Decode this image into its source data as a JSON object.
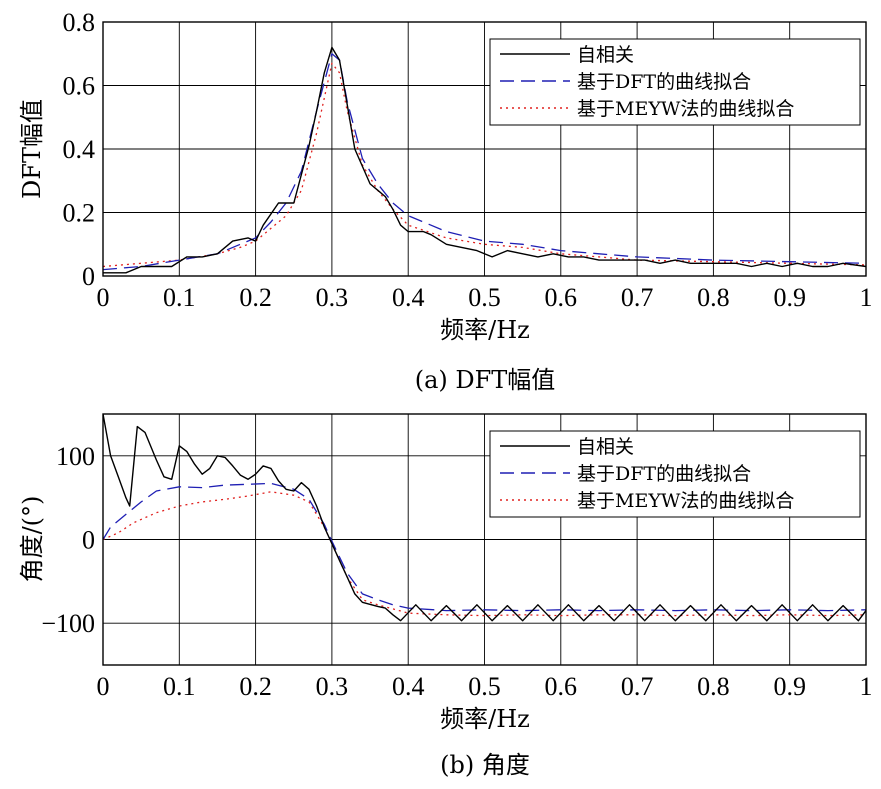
{
  "chart_data": [
    {
      "id": "a",
      "type": "line",
      "caption": "(a) DFT幅值",
      "xlabel": "频率/Hz",
      "ylabel": "DFT幅值",
      "xlim": [
        0,
        1
      ],
      "ylim": [
        0,
        0.8
      ],
      "xticks": [
        0,
        0.1,
        0.2,
        0.3,
        0.4,
        0.5,
        0.6,
        0.7,
        0.8,
        0.9,
        1
      ],
      "xtick_labels": [
        "0",
        "0.1",
        "0.2",
        "0.3",
        "0.4",
        "0.5",
        "0.6",
        "0.7",
        "0.8",
        "0.9",
        "1"
      ],
      "yticks": [
        0,
        0.2,
        0.4,
        0.6,
        0.8
      ],
      "ytick_labels": [
        "0",
        "0.2",
        "0.4",
        "0.6",
        "0.8"
      ],
      "grid": true,
      "legend_position": "top-right",
      "series": [
        {
          "name": "自相关",
          "style": "solid",
          "color": "#000000",
          "points": [
            [
              0,
              0.01
            ],
            [
              0.03,
              0.01
            ],
            [
              0.05,
              0.03
            ],
            [
              0.07,
              0.03
            ],
            [
              0.09,
              0.03
            ],
            [
              0.11,
              0.06
            ],
            [
              0.13,
              0.06
            ],
            [
              0.15,
              0.07
            ],
            [
              0.17,
              0.11
            ],
            [
              0.19,
              0.12
            ],
            [
              0.2,
              0.11
            ],
            [
              0.21,
              0.16
            ],
            [
              0.23,
              0.23
            ],
            [
              0.25,
              0.23
            ],
            [
              0.26,
              0.32
            ],
            [
              0.27,
              0.41
            ],
            [
              0.28,
              0.52
            ],
            [
              0.29,
              0.64
            ],
            [
              0.3,
              0.72
            ],
            [
              0.31,
              0.68
            ],
            [
              0.32,
              0.54
            ],
            [
              0.33,
              0.4
            ],
            [
              0.35,
              0.29
            ],
            [
              0.37,
              0.25
            ],
            [
              0.38,
              0.21
            ],
            [
              0.39,
              0.16
            ],
            [
              0.4,
              0.14
            ],
            [
              0.42,
              0.14
            ],
            [
              0.43,
              0.13
            ],
            [
              0.45,
              0.1
            ],
            [
              0.47,
              0.09
            ],
            [
              0.49,
              0.08
            ],
            [
              0.51,
              0.06
            ],
            [
              0.53,
              0.08
            ],
            [
              0.55,
              0.07
            ],
            [
              0.57,
              0.06
            ],
            [
              0.59,
              0.07
            ],
            [
              0.61,
              0.06
            ],
            [
              0.63,
              0.06
            ],
            [
              0.65,
              0.05
            ],
            [
              0.67,
              0.05
            ],
            [
              0.69,
              0.05
            ],
            [
              0.71,
              0.05
            ],
            [
              0.73,
              0.04
            ],
            [
              0.75,
              0.05
            ],
            [
              0.77,
              0.04
            ],
            [
              0.79,
              0.04
            ],
            [
              0.81,
              0.04
            ],
            [
              0.83,
              0.04
            ],
            [
              0.85,
              0.03
            ],
            [
              0.87,
              0.04
            ],
            [
              0.89,
              0.03
            ],
            [
              0.91,
              0.04
            ],
            [
              0.93,
              0.03
            ],
            [
              0.95,
              0.03
            ],
            [
              0.97,
              0.04
            ],
            [
              1.0,
              0.03
            ]
          ]
        },
        {
          "name": "基于DFT的曲线拟合",
          "style": "dashed",
          "color": "#1f1fb4",
          "points": [
            [
              0,
              0.02
            ],
            [
              0.05,
              0.03
            ],
            [
              0.1,
              0.05
            ],
            [
              0.15,
              0.07
            ],
            [
              0.18,
              0.1
            ],
            [
              0.2,
              0.12
            ],
            [
              0.22,
              0.17
            ],
            [
              0.24,
              0.23
            ],
            [
              0.26,
              0.33
            ],
            [
              0.28,
              0.52
            ],
            [
              0.3,
              0.7
            ],
            [
              0.31,
              0.68
            ],
            [
              0.32,
              0.55
            ],
            [
              0.34,
              0.37
            ],
            [
              0.36,
              0.29
            ],
            [
              0.38,
              0.23
            ],
            [
              0.4,
              0.19
            ],
            [
              0.45,
              0.14
            ],
            [
              0.5,
              0.11
            ],
            [
              0.55,
              0.1
            ],
            [
              0.6,
              0.08
            ],
            [
              0.65,
              0.07
            ],
            [
              0.7,
              0.06
            ],
            [
              0.8,
              0.05
            ],
            [
              0.9,
              0.045
            ],
            [
              1.0,
              0.04
            ]
          ]
        },
        {
          "name": "基于MEYW法的曲线拟合",
          "style": "dotted",
          "color": "#e0201e",
          "points": [
            [
              0,
              0.03
            ],
            [
              0.05,
              0.04
            ],
            [
              0.1,
              0.05
            ],
            [
              0.15,
              0.07
            ],
            [
              0.18,
              0.09
            ],
            [
              0.2,
              0.11
            ],
            [
              0.22,
              0.15
            ],
            [
              0.24,
              0.19
            ],
            [
              0.26,
              0.27
            ],
            [
              0.28,
              0.45
            ],
            [
              0.3,
              0.67
            ],
            [
              0.31,
              0.64
            ],
            [
              0.32,
              0.52
            ],
            [
              0.34,
              0.35
            ],
            [
              0.36,
              0.27
            ],
            [
              0.38,
              0.21
            ],
            [
              0.4,
              0.16
            ],
            [
              0.45,
              0.12
            ],
            [
              0.5,
              0.1
            ],
            [
              0.55,
              0.09
            ],
            [
              0.6,
              0.07
            ],
            [
              0.65,
              0.06
            ],
            [
              0.7,
              0.05
            ],
            [
              0.8,
              0.045
            ],
            [
              0.9,
              0.04
            ],
            [
              1.0,
              0.035
            ]
          ]
        }
      ]
    },
    {
      "id": "b",
      "type": "line",
      "caption": "(b) 角度",
      "xlabel": "频率/Hz",
      "ylabel": "角度/(°)",
      "xlim": [
        0,
        1
      ],
      "ylim": [
        -150,
        150
      ],
      "xticks": [
        0,
        0.1,
        0.2,
        0.3,
        0.4,
        0.5,
        0.6,
        0.7,
        0.8,
        0.9,
        1
      ],
      "xtick_labels": [
        "0",
        "0.1",
        "0.2",
        "0.3",
        "0.4",
        "0.5",
        "0.6",
        "0.7",
        "0.8",
        "0.9",
        "1"
      ],
      "yticks": [
        -100,
        0,
        100
      ],
      "ytick_labels": [
        "−100",
        "0",
        "100"
      ],
      "grid": true,
      "legend_position": "top-right",
      "series": [
        {
          "name": "自相关",
          "style": "solid",
          "color": "#000000",
          "points": [
            [
              0,
              150
            ],
            [
              0.01,
              100
            ],
            [
              0.02,
              75
            ],
            [
              0.03,
              50
            ],
            [
              0.035,
              40
            ],
            [
              0.045,
              135
            ],
            [
              0.055,
              128
            ],
            [
              0.07,
              95
            ],
            [
              0.08,
              75
            ],
            [
              0.09,
              72
            ],
            [
              0.1,
              112
            ],
            [
              0.11,
              105
            ],
            [
              0.12,
              90
            ],
            [
              0.13,
              78
            ],
            [
              0.14,
              85
            ],
            [
              0.15,
              100
            ],
            [
              0.16,
              98
            ],
            [
              0.17,
              88
            ],
            [
              0.18,
              77
            ],
            [
              0.19,
              72
            ],
            [
              0.2,
              78
            ],
            [
              0.21,
              88
            ],
            [
              0.22,
              85
            ],
            [
              0.23,
              70
            ],
            [
              0.24,
              60
            ],
            [
              0.25,
              58
            ],
            [
              0.26,
              68
            ],
            [
              0.27,
              60
            ],
            [
              0.28,
              40
            ],
            [
              0.29,
              15
            ],
            [
              0.3,
              -5
            ],
            [
              0.31,
              -25
            ],
            [
              0.32,
              -45
            ],
            [
              0.33,
              -65
            ],
            [
              0.34,
              -75
            ],
            [
              0.36,
              -80
            ],
            [
              0.37,
              -82
            ],
            [
              0.38,
              -90
            ],
            [
              0.39,
              -97
            ],
            [
              0.41,
              -78
            ],
            [
              0.43,
              -97
            ],
            [
              0.45,
              -79
            ],
            [
              0.47,
              -97
            ],
            [
              0.49,
              -78
            ],
            [
              0.51,
              -97
            ],
            [
              0.53,
              -79
            ],
            [
              0.55,
              -97
            ],
            [
              0.57,
              -78
            ],
            [
              0.59,
              -97
            ],
            [
              0.61,
              -78
            ],
            [
              0.63,
              -97
            ],
            [
              0.65,
              -79
            ],
            [
              0.67,
              -97
            ],
            [
              0.69,
              -78
            ],
            [
              0.71,
              -97
            ],
            [
              0.73,
              -78
            ],
            [
              0.75,
              -97
            ],
            [
              0.77,
              -79
            ],
            [
              0.79,
              -97
            ],
            [
              0.81,
              -78
            ],
            [
              0.83,
              -97
            ],
            [
              0.85,
              -79
            ],
            [
              0.87,
              -97
            ],
            [
              0.89,
              -78
            ],
            [
              0.91,
              -97
            ],
            [
              0.93,
              -78
            ],
            [
              0.95,
              -97
            ],
            [
              0.97,
              -79
            ],
            [
              0.99,
              -97
            ],
            [
              1.0,
              -85
            ]
          ]
        },
        {
          "name": "基于DFT的曲线拟合",
          "style": "dashed",
          "color": "#1f1fb4",
          "points": [
            [
              0,
              0
            ],
            [
              0.01,
              15
            ],
            [
              0.03,
              30
            ],
            [
              0.05,
              45
            ],
            [
              0.07,
              58
            ],
            [
              0.1,
              63
            ],
            [
              0.13,
              62
            ],
            [
              0.16,
              65
            ],
            [
              0.19,
              66
            ],
            [
              0.22,
              67
            ],
            [
              0.25,
              60
            ],
            [
              0.27,
              48
            ],
            [
              0.29,
              18
            ],
            [
              0.3,
              -2
            ],
            [
              0.32,
              -40
            ],
            [
              0.34,
              -65
            ],
            [
              0.36,
              -72
            ],
            [
              0.38,
              -78
            ],
            [
              0.4,
              -82
            ],
            [
              0.45,
              -85
            ],
            [
              0.5,
              -84
            ],
            [
              0.55,
              -85
            ],
            [
              0.6,
              -84
            ],
            [
              0.65,
              -85
            ],
            [
              0.7,
              -84
            ],
            [
              0.75,
              -85
            ],
            [
              0.8,
              -84
            ],
            [
              0.85,
              -85
            ],
            [
              0.9,
              -84
            ],
            [
              0.95,
              -85
            ],
            [
              1.0,
              -84
            ]
          ]
        },
        {
          "name": "基于MEYW法的曲线拟合",
          "style": "dotted",
          "color": "#e0201e",
          "points": [
            [
              0,
              0
            ],
            [
              0.02,
              8
            ],
            [
              0.04,
              20
            ],
            [
              0.07,
              32
            ],
            [
              0.1,
              40
            ],
            [
              0.13,
              45
            ],
            [
              0.16,
              48
            ],
            [
              0.19,
              52
            ],
            [
              0.22,
              57
            ],
            [
              0.25,
              53
            ],
            [
              0.27,
              45
            ],
            [
              0.29,
              15
            ],
            [
              0.3,
              -5
            ],
            [
              0.32,
              -45
            ],
            [
              0.34,
              -72
            ],
            [
              0.36,
              -78
            ],
            [
              0.38,
              -83
            ],
            [
              0.4,
              -88
            ],
            [
              0.45,
              -90
            ],
            [
              0.5,
              -91
            ],
            [
              0.55,
              -90
            ],
            [
              0.6,
              -91
            ],
            [
              0.65,
              -90
            ],
            [
              0.7,
              -90
            ],
            [
              0.75,
              -91
            ],
            [
              0.8,
              -90
            ],
            [
              0.85,
              -91
            ],
            [
              0.9,
              -90
            ],
            [
              0.95,
              -91
            ],
            [
              1.0,
              -90
            ]
          ]
        }
      ]
    }
  ]
}
